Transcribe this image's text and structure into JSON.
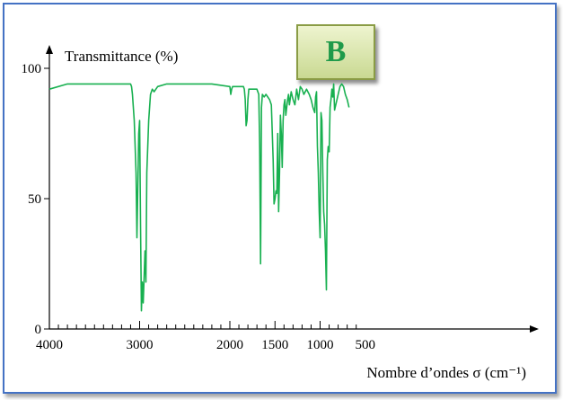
{
  "badge": "B",
  "colors": {
    "frame": "#4472c4",
    "line": "#18b050",
    "badge_text": "#1f9a4a"
  },
  "chart_data": {
    "type": "line",
    "title": "",
    "ylabel": "Transmittance (%)",
    "xlabel": "Nombre d’ondes σ (cm⁻¹)",
    "xlim": [
      4000,
      300
    ],
    "ylim": [
      0,
      100
    ],
    "x_reversed": true,
    "x_ticks": [
      4000,
      3000,
      2000,
      1500,
      1000,
      500
    ],
    "y_ticks": [
      0,
      50,
      100
    ],
    "grid": false,
    "series": [
      {
        "x": [
          4000,
          3800,
          3500,
          3300,
          3200,
          3100,
          3090,
          3080,
          3060,
          3040,
          3030,
          3010,
          3000,
          2990,
          2980,
          2970,
          2960,
          2940,
          2930,
          2920,
          2900,
          2880,
          2860,
          2840,
          2800,
          2700,
          2500,
          2200,
          2000,
          1990,
          1980,
          1970,
          1950,
          1850,
          1840,
          1830,
          1820,
          1810,
          1800,
          1790,
          1700,
          1680,
          1670,
          1660,
          1650,
          1640,
          1620,
          1600,
          1560,
          1540,
          1520,
          1510,
          1500,
          1490,
          1480,
          1470,
          1460,
          1450,
          1440,
          1430,
          1420,
          1410,
          1400,
          1390,
          1380,
          1370,
          1360,
          1350,
          1340,
          1320,
          1300,
          1280,
          1260,
          1240,
          1220,
          1200,
          1180,
          1150,
          1120,
          1100,
          1080,
          1060,
          1050,
          1040,
          1030,
          1020,
          1010,
          1000,
          990,
          980,
          970,
          960,
          950,
          940,
          930,
          920,
          910,
          900,
          890,
          880,
          870,
          860,
          850,
          840,
          820,
          800,
          780,
          760,
          740,
          720,
          700,
          680
        ],
        "y": [
          92,
          94,
          94,
          94,
          94,
          94,
          93,
          90,
          80,
          60,
          35,
          75,
          80,
          40,
          7,
          18,
          10,
          30,
          18,
          60,
          80,
          90,
          92,
          91,
          93,
          94,
          94,
          94,
          93,
          90,
          92,
          93,
          93,
          93,
          92,
          88,
          78,
          80,
          88,
          92,
          92,
          90,
          70,
          25,
          85,
          90,
          89,
          90,
          88,
          86,
          65,
          48,
          50,
          53,
          52,
          75,
          45,
          60,
          82,
          75,
          62,
          80,
          86,
          88,
          82,
          85,
          88,
          90,
          86,
          91,
          88,
          86,
          92,
          88,
          93,
          92,
          90,
          92,
          90,
          88,
          85,
          83,
          89,
          91,
          70,
          60,
          45,
          35,
          83,
          80,
          60,
          45,
          40,
          30,
          15,
          65,
          70,
          68,
          85,
          88,
          92,
          89,
          94,
          84,
          87,
          90,
          93,
          94,
          93,
          90,
          88,
          85
        ]
      }
    ]
  }
}
